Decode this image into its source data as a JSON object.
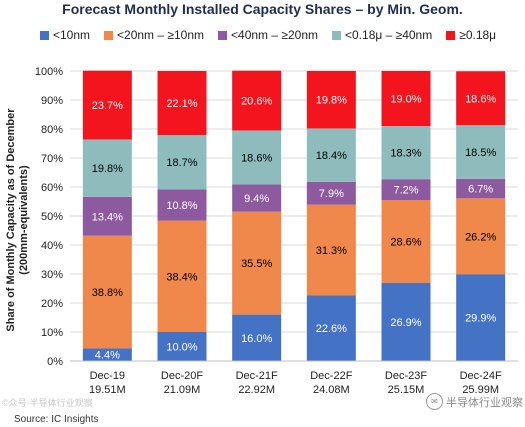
{
  "title": "Forecast Monthly Installed Capacity Shares – by Min. Geom.",
  "source": "Source:  IC Insights",
  "watermarks": {
    "left": "©众号·半导体行业观察",
    "right": "半导体行业观察",
    "right_icon": "wechat-icon"
  },
  "chart_data": {
    "type": "bar",
    "stacked": true,
    "categories": [
      "Dec-19",
      "Dec-20F",
      "Dec-21F",
      "Dec-22F",
      "Dec-23F",
      "Dec-24F"
    ],
    "category_sublabels": [
      "19.51M",
      "21.09M",
      "22.92M",
      "24.08M",
      "25.15M",
      "25.99M"
    ],
    "ylabel": "Share of Monthly Capacity as of December\n(200mm-equivalents)",
    "ylim": [
      0,
      100
    ],
    "yticks": [
      0,
      10,
      20,
      30,
      40,
      50,
      60,
      70,
      80,
      90,
      100
    ],
    "ytick_suffix": "%",
    "legend_position": "top",
    "grid": true,
    "series": [
      {
        "name": "<10nm",
        "color": "#4472c4",
        "label_color": "#ffffff",
        "values": [
          4.4,
          10.0,
          16.0,
          22.6,
          26.9,
          29.9
        ]
      },
      {
        "name": "<20nm – ≥10nm",
        "color": "#f0884c",
        "label_color": "#000000",
        "values": [
          38.8,
          38.4,
          35.5,
          31.3,
          28.6,
          26.2
        ]
      },
      {
        "name": "<40nm – ≥20nm",
        "color": "#8e5a9f",
        "label_color": "#ffffff",
        "values": [
          13.4,
          10.8,
          9.4,
          7.9,
          7.2,
          6.7
        ]
      },
      {
        "name": "<0.18μ – ≥40nm",
        "color": "#8ebcbd",
        "label_color": "#000000",
        "values": [
          19.8,
          18.7,
          18.6,
          18.4,
          18.3,
          18.5
        ]
      },
      {
        "name": "≥0.18μ",
        "color": "#f3141d",
        "label_color": "#ffffff",
        "values": [
          23.7,
          22.1,
          20.6,
          19.8,
          19.0,
          18.6
        ]
      }
    ]
  }
}
